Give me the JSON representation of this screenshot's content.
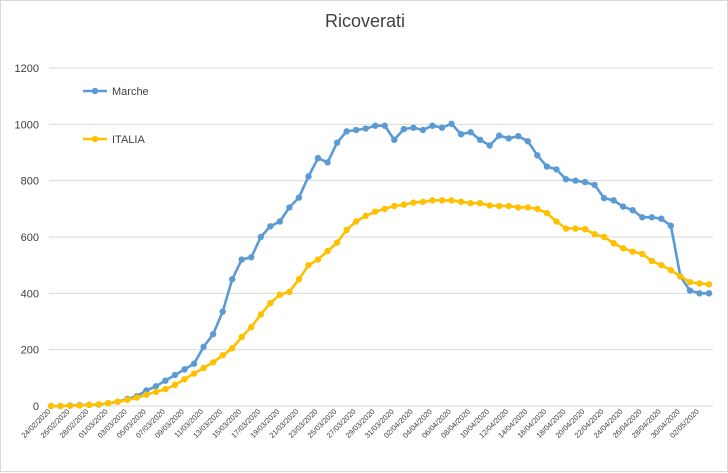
{
  "chart_data": {
    "type": "line",
    "title": "Ricoverati",
    "xlabel": "",
    "ylabel": "",
    "ylim": [
      0,
      1200
    ],
    "yticks": [
      0,
      200,
      400,
      600,
      800,
      1000,
      1200
    ],
    "grid": "horizontal",
    "legend_position": "top-left",
    "x": [
      "24/02/2020",
      "25/02/2020",
      "26/02/2020",
      "27/02/2020",
      "28/02/2020",
      "29/02/2020",
      "01/03/2020",
      "02/03/2020",
      "03/03/2020",
      "04/03/2020",
      "05/03/2020",
      "06/03/2020",
      "07/03/2020",
      "08/03/2020",
      "09/03/2020",
      "10/03/2020",
      "11/03/2020",
      "12/03/2020",
      "13/03/2020",
      "14/03/2020",
      "15/03/2020",
      "16/03/2020",
      "17/03/2020",
      "18/03/2020",
      "19/03/2020",
      "20/03/2020",
      "21/03/2020",
      "22/03/2020",
      "23/03/2020",
      "24/03/2020",
      "25/03/2020",
      "26/03/2020",
      "27/03/2020",
      "28/03/2020",
      "29/03/2020",
      "30/03/2020",
      "31/03/2020",
      "01/04/2020",
      "02/04/2020",
      "03/04/2020",
      "04/04/2020",
      "05/04/2020",
      "06/04/2020",
      "07/04/2020",
      "08/04/2020",
      "09/04/2020",
      "10/04/2020",
      "11/04/2020",
      "12/04/2020",
      "13/04/2020",
      "14/04/2020",
      "15/04/2020",
      "16/04/2020",
      "17/04/2020",
      "18/04/2020",
      "19/04/2020",
      "20/04/2020",
      "21/04/2020",
      "22/04/2020",
      "23/04/2020",
      "24/04/2020",
      "25/04/2020",
      "26/04/2020",
      "27/04/2020",
      "28/04/2020",
      "29/04/2020",
      "30/04/2020",
      "01/05/2020",
      "02/05/2020",
      "03/05/2020"
    ],
    "x_tick_labels": [
      "24/02/2020",
      "26/02/2020",
      "28/02/2020",
      "01/03/2020",
      "03/03/2020",
      "05/03/2020",
      "07/03/2020",
      "09/03/2020",
      "11/03/2020",
      "13/03/2020",
      "15/03/2020",
      "17/03/2020",
      "19/03/2020",
      "21/03/2020",
      "23/03/2020",
      "25/03/2020",
      "27/03/2020",
      "29/03/2020",
      "31/03/2020",
      "02/04/2020",
      "04/04/2020",
      "06/04/2020",
      "08/04/2020",
      "10/04/2020",
      "12/04/2020",
      "14/04/2020",
      "16/04/2020",
      "18/04/2020",
      "20/04/2020",
      "22/04/2020",
      "24/04/2020",
      "26/04/2020",
      "28/04/2020",
      "30/04/2020",
      "02/05/2020"
    ],
    "series": [
      {
        "name": "Marche",
        "color": "#5b9bd5",
        "values": [
          0,
          0,
          2,
          3,
          4,
          5,
          10,
          15,
          25,
          35,
          55,
          70,
          90,
          110,
          130,
          150,
          210,
          255,
          335,
          450,
          520,
          528,
          600,
          638,
          655,
          705,
          740,
          815,
          880,
          865,
          935,
          975,
          980,
          985,
          995,
          995,
          945,
          983,
          988,
          980,
          995,
          988,
          1002,
          965,
          972,
          945,
          925,
          960,
          950,
          958,
          940,
          890,
          850,
          840,
          805,
          800,
          795,
          785,
          738,
          730,
          708,
          695,
          670,
          670,
          665,
          640,
          460,
          410,
          400,
          400
        ]
      },
      {
        "name": "ITALIA",
        "color": "#ffc000",
        "values": [
          0,
          0,
          1,
          2,
          4,
          6,
          10,
          15,
          22,
          30,
          40,
          50,
          60,
          75,
          95,
          115,
          135,
          155,
          180,
          205,
          245,
          280,
          325,
          365,
          395,
          405,
          450,
          500,
          520,
          550,
          580,
          625,
          655,
          675,
          690,
          700,
          710,
          715,
          722,
          725,
          730,
          730,
          730,
          725,
          720,
          720,
          712,
          710,
          710,
          705,
          705,
          700,
          685,
          655,
          630,
          630,
          628,
          610,
          600,
          578,
          560,
          548,
          540,
          515,
          500,
          482,
          460,
          440,
          435,
          432
        ]
      }
    ]
  }
}
